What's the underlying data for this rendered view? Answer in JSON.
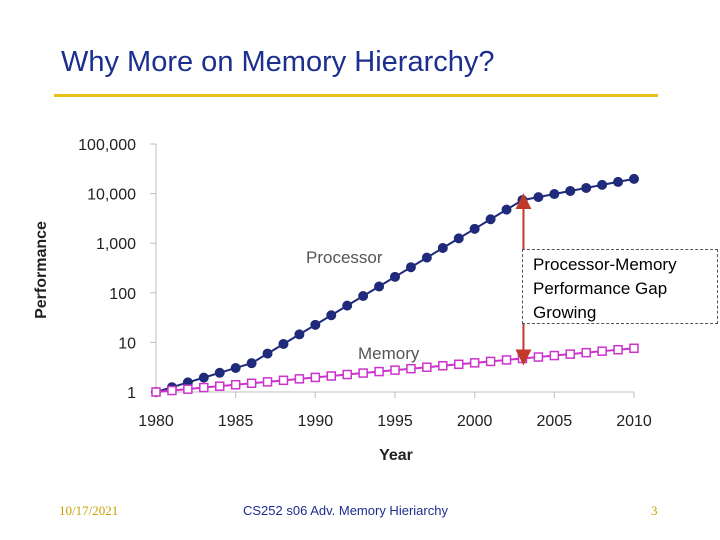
{
  "slide": {
    "title": "Why More on Memory Hierarchy?",
    "footer_date": "10/17/2021",
    "footer_center": "CS252 s06 Adv. Memory Hieriarchy",
    "page_number": "3"
  },
  "colors": {
    "title": "#1c2e8f",
    "rule": "#e8c21a",
    "processor": "#1f2a7a",
    "memory": "#cc33cc",
    "arrow": "#c0392b"
  },
  "gap_callout": {
    "lines": [
      "Processor-Memory",
      "Performance Gap",
      "Growing"
    ]
  },
  "chart_data": {
    "type": "line",
    "xlabel": "Year",
    "ylabel": "Performance",
    "yscale": "log",
    "xlim": [
      1980,
      2010
    ],
    "ylim": [
      1,
      100000
    ],
    "x_ticks": [
      "1980",
      "1985",
      "1990",
      "1995",
      "2000",
      "2005",
      "2010"
    ],
    "y_ticks": [
      "1",
      "10",
      "100",
      "1,000",
      "10,000",
      "100,000"
    ],
    "grid": "vertical at 1980 only",
    "x": [
      1980,
      1981,
      1982,
      1983,
      1984,
      1985,
      1986,
      1987,
      1988,
      1989,
      1990,
      1991,
      1992,
      1993,
      1994,
      1995,
      1996,
      1997,
      1998,
      1999,
      2000,
      2001,
      2002,
      2003,
      2004,
      2005,
      2006,
      2007,
      2008,
      2009,
      2010
    ],
    "series": [
      {
        "name": "Processor",
        "marker": "filled-circle",
        "values": [
          1,
          1.25,
          1.56,
          1.95,
          2.44,
          3.05,
          3.81,
          5.95,
          9.3,
          14.5,
          22.6,
          35.3,
          55.1,
          86.1,
          134,
          210,
          328,
          512,
          800,
          1250,
          1950,
          3040,
          4750,
          7400,
          8500,
          9800,
          11300,
          13000,
          15000,
          17200,
          19800
        ]
      },
      {
        "name": "Memory",
        "marker": "open-square",
        "values": [
          1,
          1.07,
          1.14,
          1.23,
          1.31,
          1.4,
          1.5,
          1.6,
          1.72,
          1.84,
          1.97,
          2.1,
          2.25,
          2.41,
          2.58,
          2.76,
          2.95,
          3.16,
          3.38,
          3.62,
          3.87,
          4.14,
          4.43,
          4.74,
          5.07,
          5.43,
          5.81,
          6.21,
          6.65,
          7.11,
          7.61
        ]
      }
    ],
    "annotations": [
      {
        "text": "Processor-Memory Performance Gap Growing",
        "x": 2003,
        "from": 4.74,
        "to": 7400,
        "style": "double-arrow"
      }
    ]
  }
}
